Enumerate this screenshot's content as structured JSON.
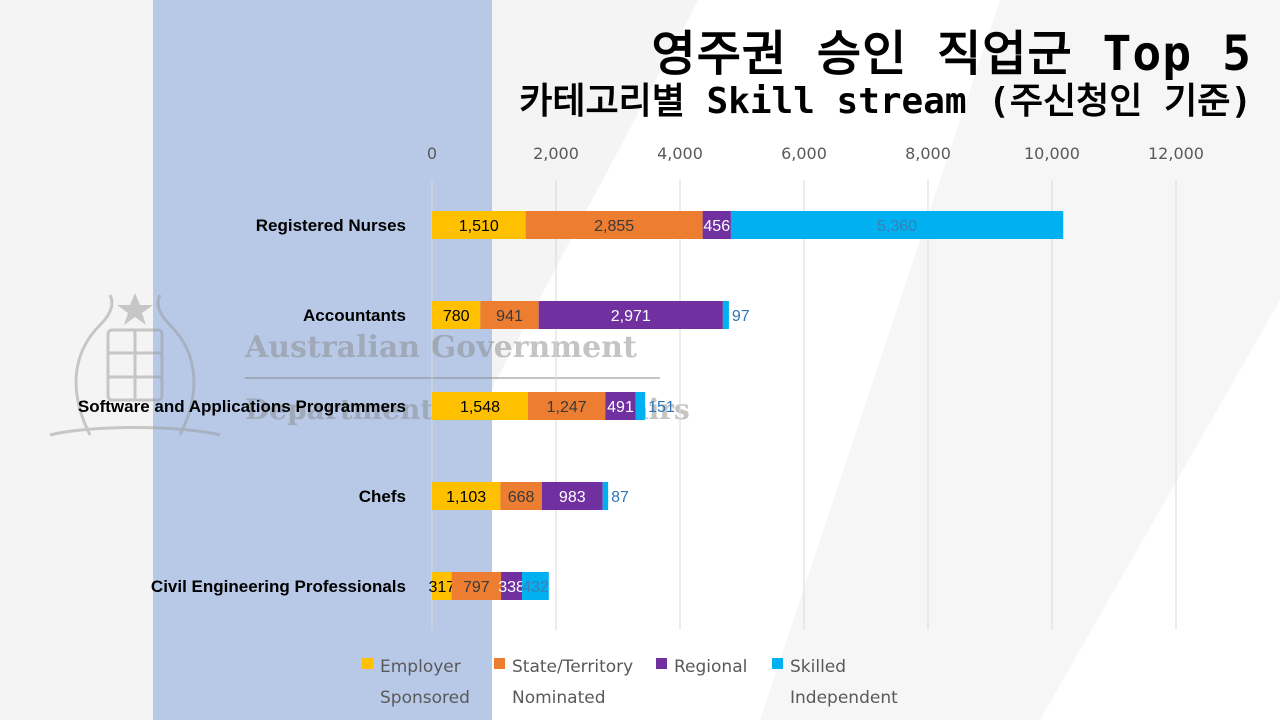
{
  "header": {
    "title": "영주권 승인 직업군 Top 5",
    "subtitle": "카테고리별 Skill stream (주신청인 기준)"
  },
  "watermark": {
    "line1": "Australian Government",
    "line2": "Department of Home Affairs"
  },
  "chart_data": {
    "type": "bar",
    "orientation": "horizontal",
    "stacked": true,
    "title": "",
    "xlabel": "",
    "ylabel": "",
    "xlim": [
      0,
      12000
    ],
    "x_ticks": [
      "0",
      "2,000",
      "4,000",
      "6,000",
      "8,000",
      "10,000",
      "12,000"
    ],
    "grid": true,
    "legend_position": "bottom",
    "categories": [
      "Registered Nurses",
      "Accountants",
      "Software and Applications Programmers",
      "Chefs",
      "Civil Engineering Professionals"
    ],
    "series": [
      {
        "name": "Employer Sponsored",
        "color": "#ffc000",
        "values": [
          1510,
          780,
          1548,
          1103,
          317
        ],
        "labels": [
          "1,510",
          "780",
          "1,548",
          "1,103",
          "317"
        ]
      },
      {
        "name": "State/Territory Nominated",
        "color": "#ed7d31",
        "values": [
          2855,
          941,
          1247,
          668,
          797
        ],
        "labels": [
          "2,855",
          "941",
          "1,247",
          "668",
          "797"
        ]
      },
      {
        "name": "Regional",
        "color": "#7030a0",
        "values": [
          456,
          2971,
          491,
          983,
          338
        ],
        "labels": [
          "456",
          "2,971",
          "491",
          "983",
          "338"
        ]
      },
      {
        "name": "Skilled Independent",
        "color": "#00b0f0",
        "values": [
          5360,
          97,
          151,
          87,
          432
        ],
        "labels": [
          "5,360",
          "97",
          "151",
          "87",
          "432"
        ]
      }
    ]
  },
  "legend": [
    {
      "line1": "Employer",
      "line2": "Sponsored",
      "color": "#ffc000"
    },
    {
      "line1": "State/Territory",
      "line2": "Nominated",
      "color": "#ed7d31"
    },
    {
      "line1": "Regional",
      "line2": "",
      "color": "#7030a0"
    },
    {
      "line1": "Skilled",
      "line2": "Independent",
      "color": "#00b0f0"
    }
  ]
}
